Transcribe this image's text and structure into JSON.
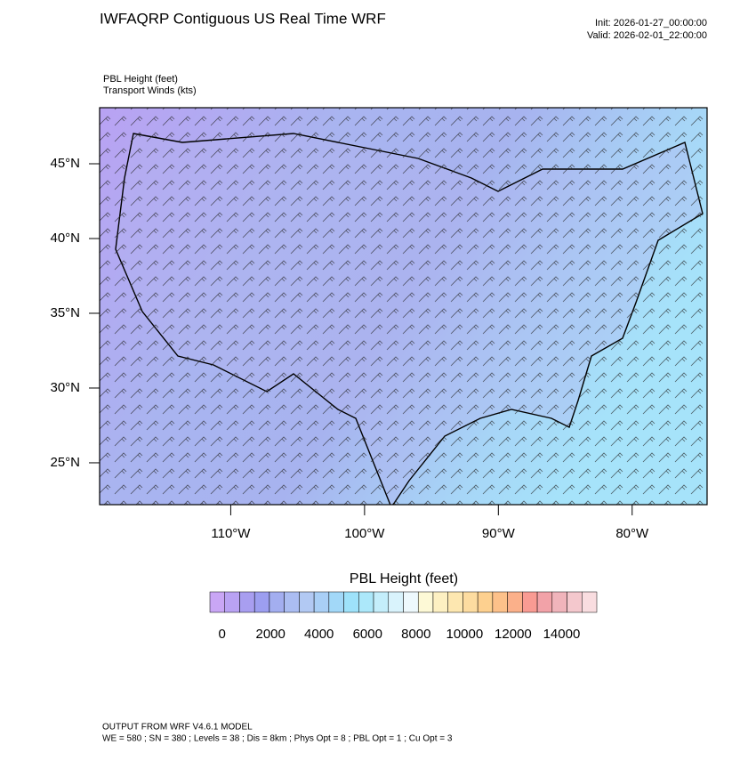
{
  "header": {
    "title": "IWFAQRP Contiguous US Real Time WRF",
    "init": "Init: 2026-01-27_00:00:00",
    "valid": "Valid: 2026-02-01_22:00:00"
  },
  "fields": [
    "PBL Height   (feet)",
    "Transport Winds   (kts)"
  ],
  "map": {
    "lon_range": [
      -119.8,
      -74.4
    ],
    "lat_range": [
      22.2,
      48.75
    ],
    "lon_ticks": [
      {
        "value": -110,
        "label": "110°W"
      },
      {
        "value": -100,
        "label": "100°W"
      },
      {
        "value": -90,
        "label": "90°W"
      },
      {
        "value": -80,
        "label": "80°W"
      }
    ],
    "lat_ticks": [
      {
        "value": 45,
        "label": "45°N"
      },
      {
        "value": 40,
        "label": "40°N"
      },
      {
        "value": 35,
        "label": "35°N"
      },
      {
        "value": 30,
        "label": "30°N"
      },
      {
        "value": 25,
        "label": "25°N"
      }
    ]
  },
  "colorbar": {
    "title": "PBL Height  (feet)",
    "range": [
      -500,
      15450
    ],
    "ticks": [
      0,
      2000,
      4000,
      6000,
      8000,
      10000,
      12000,
      14000
    ],
    "colors": [
      "#c9a6f5",
      "#b9a2f3",
      "#a89ef0",
      "#9c9ef0",
      "#a3aef0",
      "#abbdf2",
      "#b2c9f3",
      "#a9cff6",
      "#a2d8f8",
      "#9ee2fa",
      "#ace8fa",
      "#c4eefb",
      "#d9f3fc",
      "#eef9fd",
      "#fdf9d6",
      "#fdf0c2",
      "#fde7b0",
      "#fddca0",
      "#fdd08f",
      "#fdc18a",
      "#fbb08a",
      "#f99b93",
      "#f2a2a8",
      "#f0b4bb",
      "#f4c8cd",
      "#f9dde0"
    ]
  },
  "footer": {
    "model": "OUTPUT FROM WRF V4.6.1 MODEL",
    "config": "WE = 580 ; SN = 380 ; Levels = 38 ; Dis = 8km ; Phys Opt = 8 ; PBL Opt = 1 ; Cu Opt = 3"
  }
}
